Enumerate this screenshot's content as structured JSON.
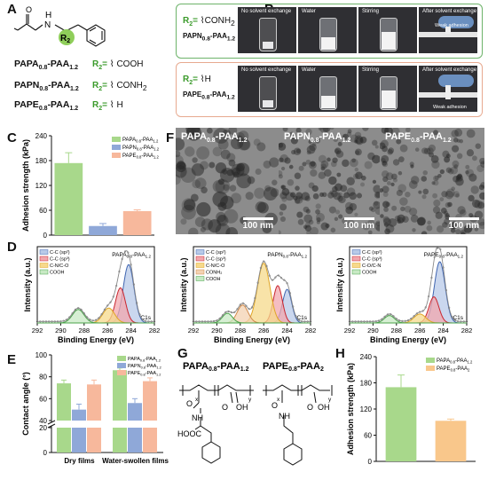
{
  "panels": {
    "A": {
      "label": "A",
      "amide_n": "N",
      "amide_h": "H",
      "r2": "R",
      "r2_sub": "2",
      "rows": [
        {
          "name": "PAPA",
          "sub1": "0.8",
          "mid": "-PAA",
          "sub2": "1.2",
          "r": "R",
          "rsub": "2",
          "eq": "=",
          "group": "COOH"
        },
        {
          "name": "PAPN",
          "sub1": "0.8",
          "mid": "-PAA",
          "sub2": "1.2",
          "r": "R",
          "rsub": "2",
          "eq": "=",
          "group": "CONH",
          "gsub": "2"
        },
        {
          "name": "PAPE",
          "sub1": "0.8",
          "mid": "-PAA",
          "sub2": "1.2",
          "r": "R",
          "rsub": "2",
          "eq": "=",
          "group": "H"
        }
      ]
    },
    "B": {
      "label": "B",
      "rows": [
        {
          "r": "R",
          "rsub": "2",
          "eq": "=",
          "group": "CONH",
          "gsub": "2",
          "name": "PAPN",
          "sub1": "0.8",
          "mid": "-PAA",
          "sub2": "1.2",
          "captions": [
            "No solvent exchange",
            "Water",
            "Stirring",
            "After solvent exchange"
          ],
          "note": "Weak adhesion"
        },
        {
          "r": "R",
          "rsub": "2",
          "eq": "=",
          "group": "H",
          "name": "PAPE",
          "sub1": "0.8",
          "mid": "-PAA",
          "sub2": "1.2",
          "captions": [
            "No solvent exchange",
            "Water",
            "Stirring",
            "After solvent exchange"
          ],
          "note": "Weak adhesion"
        }
      ]
    },
    "C": {
      "label": "C"
    },
    "D": {
      "label": "D"
    },
    "E": {
      "label": "E"
    },
    "F": {
      "label": "F",
      "images": [
        {
          "name": "PAPA",
          "sub1": "0.8",
          "mid": "-PAA",
          "sub2": "1.2",
          "scale": "100 nm"
        },
        {
          "name": "PAPN",
          "sub1": "0.8",
          "mid": "-PAA",
          "sub2": "1.2",
          "scale": "100 nm"
        },
        {
          "name": "PAPE",
          "sub1": "0.8",
          "mid": "-PAA",
          "sub2": "1.2",
          "scale": "100 nm"
        }
      ]
    },
    "G": {
      "label": "G",
      "left_name": "PAPA",
      "left_sub1": "0.8",
      "left_mid": "-PAA",
      "left_sub2": "1.2",
      "right_name": "PAPE",
      "right_sub1": "0.8",
      "right_mid": "-PAA",
      "right_sub2": "2",
      "x": "x",
      "y": "y",
      "nh": "NH",
      "n": "N",
      "o": "O",
      "oh": "OH",
      "hooc": "HOOC"
    },
    "H": {
      "label": "H"
    }
  },
  "colors": {
    "green": "#a8d88b",
    "blue": "#8fa8d8",
    "peach": "#f7b89c",
    "orange": "#f9c78b"
  },
  "chart_data": [
    {
      "id": "C",
      "type": "bar",
      "ylabel": "Adhesion strength (kPa)",
      "ylim": [
        0,
        240
      ],
      "yticks": [
        "0",
        "60",
        "120",
        "180",
        "240"
      ],
      "categories": [
        "PAPA-PAA",
        "PAPN-PAA",
        "PAPE-PAA"
      ],
      "values": [
        174,
        22,
        58
      ],
      "errors": [
        25,
        6,
        3
      ],
      "legend": [
        {
          "base": "PAPA",
          "s1": "0.8",
          "mid": "-PAA",
          "s2": "1.2"
        },
        {
          "base": "PAPN",
          "s1": "0.8",
          "mid": "-PAA",
          "s2": "1.2"
        },
        {
          "base": "PAPE",
          "s1": "0.8",
          "mid": "-PAA",
          "s2": "1.2"
        }
      ],
      "legend_position": "top-right"
    },
    {
      "id": "D",
      "type": "line",
      "xlabel": "Binding Energy (eV)",
      "ylabel": "Intensity (a.u.)",
      "xlim": [
        292,
        282
      ],
      "xticks": [
        "292",
        "290",
        "288",
        "286",
        "284",
        "282"
      ],
      "tag": "C1s",
      "subplots": [
        {
          "title_base": "PAPA",
          "title_s1": "0.8",
          "title_mid": "-PAA",
          "title_s2": "1.2",
          "legend": [
            "C-C (sp²)",
            "C-C (sp³)",
            "C-N/C-O",
            "COOH"
          ],
          "components": [
            {
              "name": "C-C (sp²)",
              "center": 284.2,
              "height": 0.78,
              "width": 0.65
            },
            {
              "name": "C-C (sp³)",
              "center": 284.9,
              "height": 0.47,
              "width": 0.6
            },
            {
              "name": "C-N/C-O",
              "center": 285.9,
              "height": 0.2,
              "width": 0.7
            },
            {
              "name": "COOH",
              "center": 288.5,
              "height": 0.18,
              "width": 0.7
            }
          ]
        },
        {
          "title_base": "PAPN",
          "title_s1": "0.8",
          "title_mid": "-PAA",
          "title_s2": "1.2",
          "legend": [
            "C-C (sp²)",
            "C-C (sp³)",
            "C-N/C-O",
            "CONH₂",
            "COOH"
          ],
          "components": [
            {
              "name": "C-C (sp²)",
              "center": 284.0,
              "height": 0.45,
              "width": 0.55
            },
            {
              "name": "C-C (sp³)",
              "center": 284.8,
              "height": 0.5,
              "width": 0.55
            },
            {
              "name": "C-N/C-O",
              "center": 286.0,
              "height": 0.8,
              "width": 0.75
            },
            {
              "name": "CONH₂",
              "center": 287.8,
              "height": 0.24,
              "width": 0.65
            },
            {
              "name": "COOH",
              "center": 289.1,
              "height": 0.13,
              "width": 0.6
            }
          ]
        },
        {
          "title_base": "PAPE",
          "title_s1": "0.8",
          "title_mid": "-PAA",
          "title_s2": "1.2",
          "legend": [
            "C-C (sp²)",
            "C-C (sp³)",
            "C-O/C-N",
            "COOH"
          ],
          "components": [
            {
              "name": "C-C (sp²)",
              "center": 284.3,
              "height": 0.82,
              "width": 0.65
            },
            {
              "name": "C-C (sp³)",
              "center": 284.8,
              "height": 0.35,
              "width": 0.6
            },
            {
              "name": "C-O/C-N",
              "center": 286.0,
              "height": 0.12,
              "width": 0.7
            },
            {
              "name": "COOH",
              "center": 288.6,
              "height": 0.1,
              "width": 0.6
            }
          ]
        }
      ]
    },
    {
      "id": "E",
      "type": "bar",
      "ylabel": "Contact angle (°)",
      "yticks_low": [
        "0",
        "20"
      ],
      "yticks_high": [
        "40",
        "60",
        "80",
        "100"
      ],
      "categories": [
        "Dry films",
        "Water-swollen films"
      ],
      "series": [
        {
          "name": "PAPA-PAA",
          "values": [
            74,
            86
          ],
          "errors": [
            3,
            2
          ]
        },
        {
          "name": "PAPN-PAA",
          "values": [
            50,
            56
          ],
          "errors": [
            5,
            4
          ]
        },
        {
          "name": "PAPE-PAA",
          "values": [
            73,
            76
          ],
          "errors": [
            4,
            3
          ]
        }
      ],
      "legend": [
        {
          "base": "PAPA",
          "s1": "0.8",
          "mid": "-PAA",
          "s2": "1.2"
        },
        {
          "base": "PAPN",
          "s1": "0.8",
          "mid": "-PAA",
          "s2": "1.2"
        },
        {
          "base": "PAPE",
          "s1": "0.8",
          "mid": "-PAA",
          "s2": "1.2"
        }
      ],
      "legend_position": "top-right"
    },
    {
      "id": "H",
      "type": "bar",
      "ylabel": "Adhesion strength (kPa)",
      "ylim": [
        0,
        240
      ],
      "yticks": [
        "0",
        "60",
        "120",
        "180",
        "240"
      ],
      "categories": [
        "PAPA-PAA",
        "PAPE-PAA"
      ],
      "values": [
        170,
        93
      ],
      "errors": [
        28,
        4
      ],
      "legend": [
        {
          "base": "PAPA",
          "s1": "0.8",
          "mid": "-PAA",
          "s2": "1.2"
        },
        {
          "base": "PAPE",
          "s1": "0.8",
          "mid": "-PAA",
          "s2": "2"
        }
      ],
      "legend_position": "top-right"
    }
  ]
}
